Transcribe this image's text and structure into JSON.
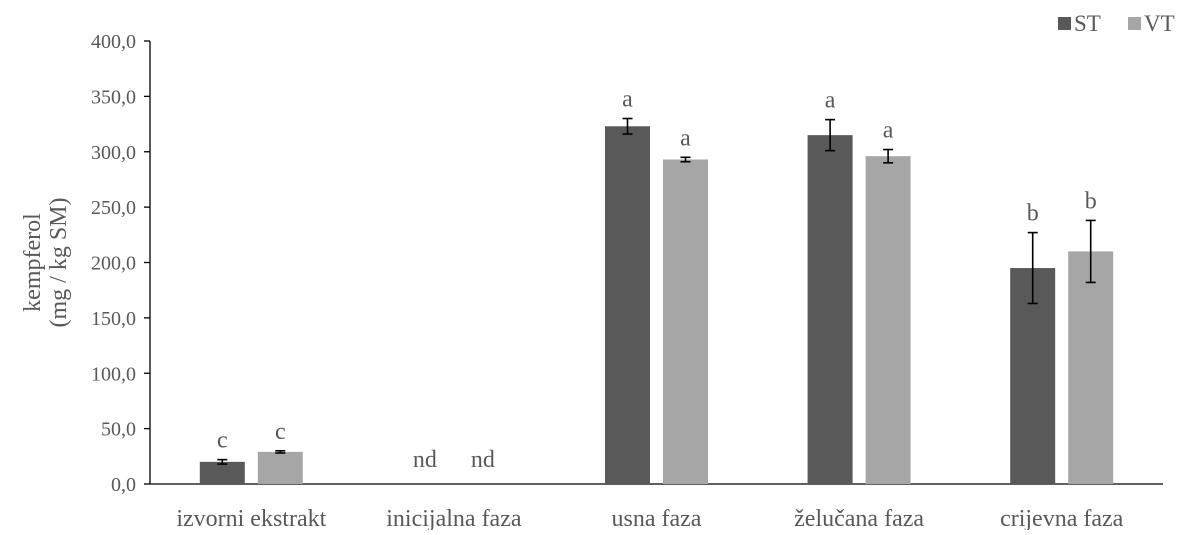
{
  "chart_data": {
    "type": "bar",
    "title": "",
    "xlabel": "",
    "ylabel_lines": [
      "kempferol",
      "(mg / kg SM)"
    ],
    "ylim": [
      0,
      400
    ],
    "yticks": [
      0,
      50,
      100,
      150,
      200,
      250,
      300,
      350,
      400
    ],
    "ytick_labels": [
      "0,0",
      "50,0",
      "100,0",
      "150,0",
      "200,0",
      "250,0",
      "300,0",
      "350,0",
      "400,0"
    ],
    "categories": [
      "izvorni ekstrakt",
      "inicijalna faza",
      "usna faza",
      "želučana faza",
      "crijevna faza"
    ],
    "legend_position": "top-right",
    "grid": false,
    "series": [
      {
        "name": "ST",
        "color": "#595959",
        "values": [
          20,
          null,
          323,
          315,
          195
        ],
        "errors": [
          2,
          null,
          7,
          14,
          32
        ],
        "labels": [
          "c",
          "nd",
          "a",
          "a",
          "b"
        ]
      },
      {
        "name": "VT",
        "color": "#a6a6a6",
        "values": [
          29,
          null,
          293,
          296,
          210
        ],
        "errors": [
          1,
          null,
          2,
          6,
          28
        ],
        "labels": [
          "c",
          "nd",
          "a",
          "a",
          "b"
        ]
      }
    ]
  }
}
